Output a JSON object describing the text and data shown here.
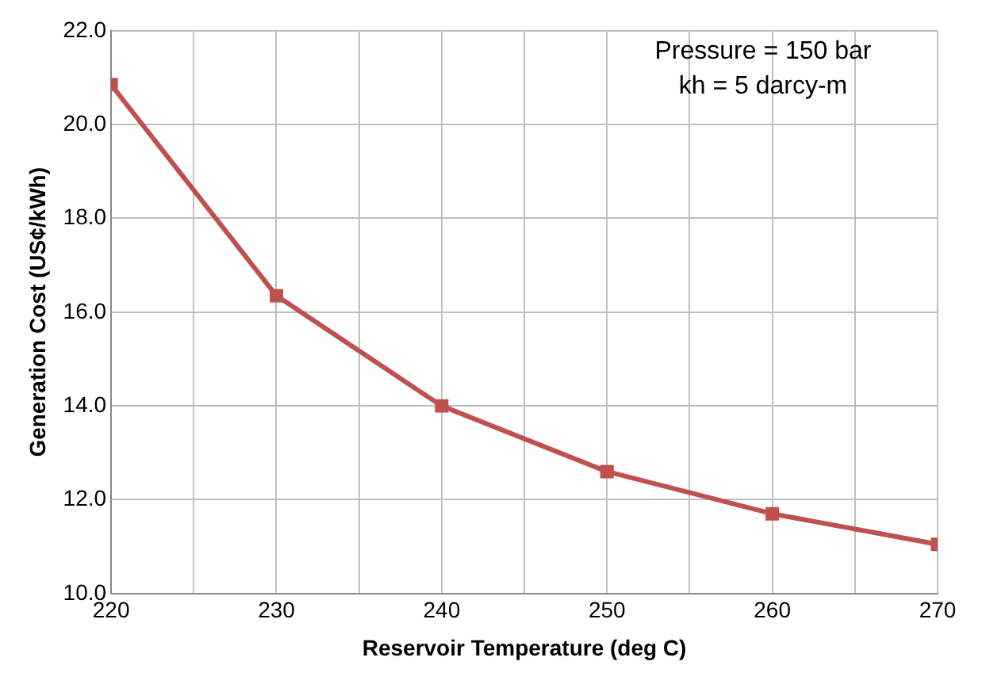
{
  "chart_data": {
    "type": "line",
    "xlabel": "Reservoir Temperature (deg C)",
    "ylabel": "Generation Cost (US¢/kWh)",
    "x": [
      220,
      230,
      240,
      250,
      260,
      270
    ],
    "series": [
      {
        "color": "#c0504d",
        "values": [
          20.85,
          16.35,
          14.0,
          12.6,
          11.7,
          11.05
        ]
      }
    ],
    "xlim": [
      220,
      270
    ],
    "xticks": [
      220,
      {
        "value": 225,
        "label": null
      },
      230,
      {
        "value": 235,
        "label": null
      },
      240,
      {
        "value": 245,
        "label": null
      },
      250,
      {
        "value": 255,
        "label": null
      },
      260,
      {
        "value": 265,
        "label": null
      },
      270
    ],
    "ylim": [
      10,
      22
    ],
    "yticks": [
      {
        "value": 10,
        "label": "10.0"
      },
      {
        "value": 12,
        "label": "12.0"
      },
      {
        "value": 14,
        "label": "14.0"
      },
      {
        "value": 16,
        "label": "16.0"
      },
      {
        "value": 18,
        "label": "18.0"
      },
      {
        "value": 20,
        "label": "20.0"
      },
      {
        "value": 22,
        "label": "22.0"
      }
    ],
    "annotations": [
      "Pressure = 150 bar",
      "kh = 5 darcy-m"
    ],
    "grid": true,
    "legend": false,
    "marker": "square",
    "line_style": "solid"
  }
}
